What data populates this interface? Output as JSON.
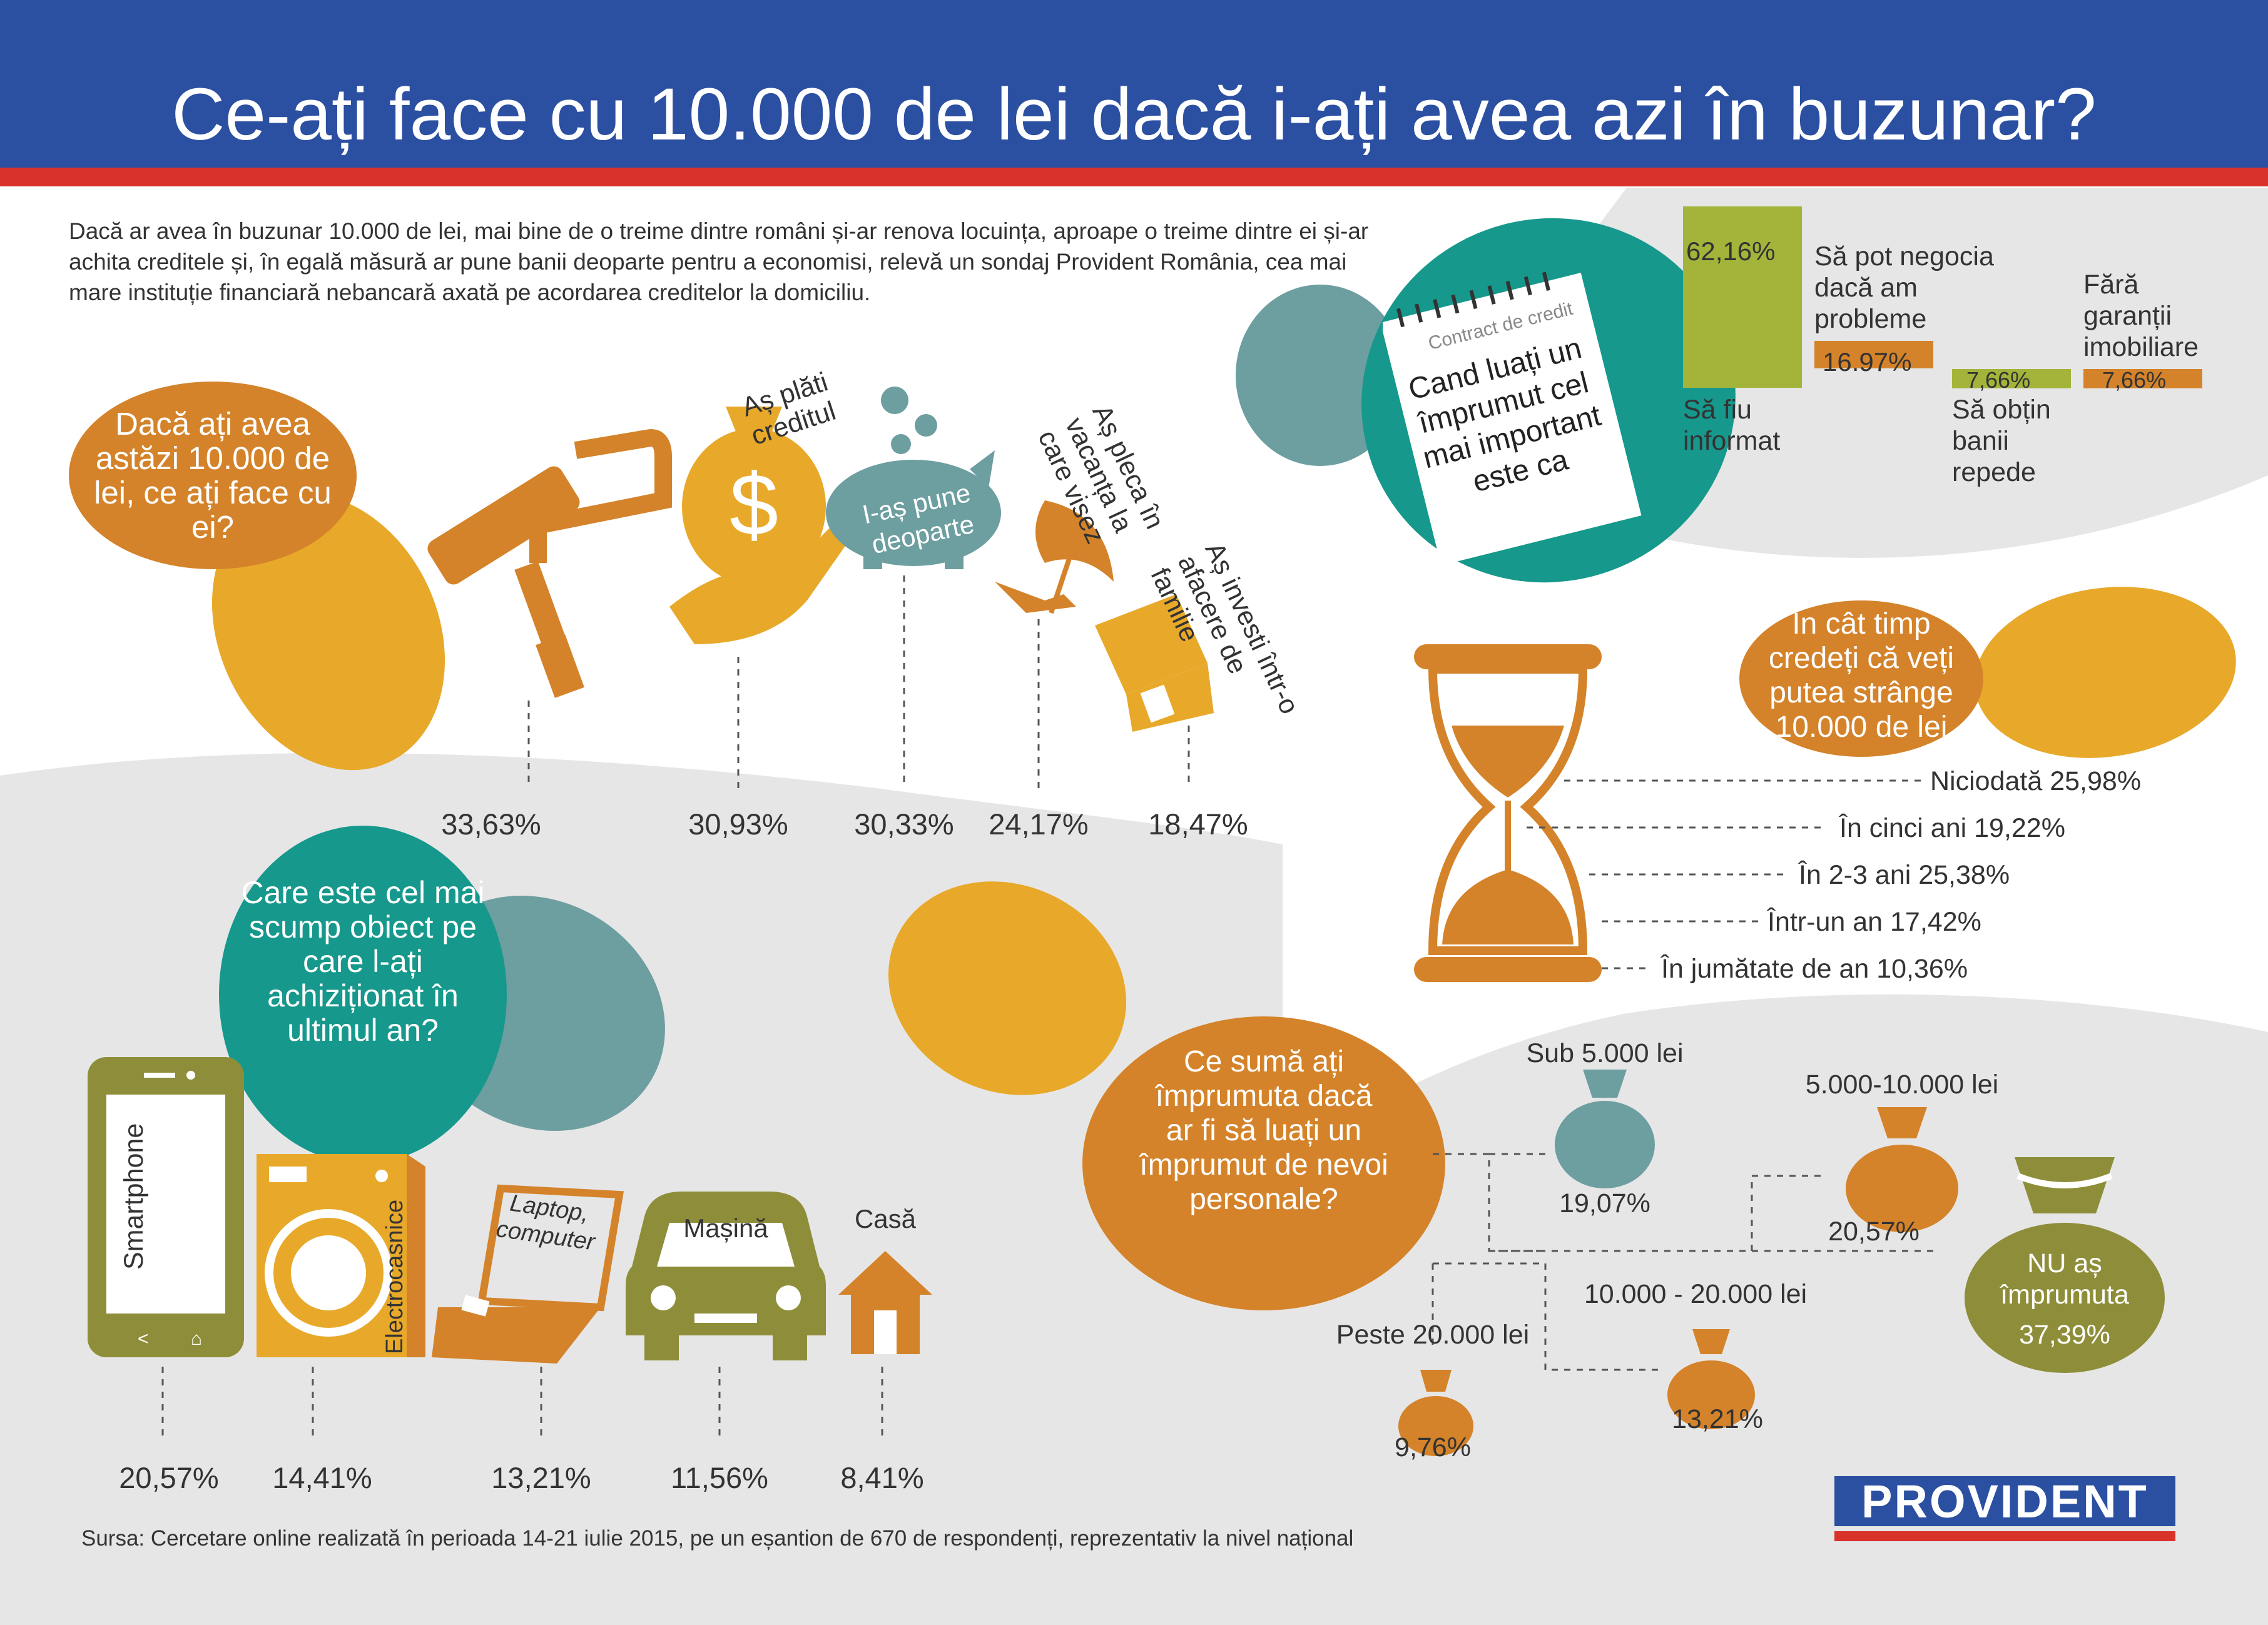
{
  "title": "Ce-ați face cu 10.000 de lei dacă i-ați avea azi în buzunar?",
  "intro": "Dacă ar avea în buzunar 10.000 de lei, mai bine de o treime dintre români și-ar renova locuința, aproape o treime dintre ei și-ar achita creditele și, în egală măsură ar pune banii deoparte pentru a economisi, relevă un sondaj Provident România, cea mai mare instituție financiară nebancară axată pe acordarea creditelor la domiciliu.",
  "colors": {
    "blue": "#2b4fa1",
    "red": "#d9322b",
    "orange": "#d4832a",
    "yellow": "#e8a92a",
    "teal": "#16988c",
    "greyteal": "#6d9ea0",
    "olive": "#8e8e3a",
    "lime": "#a4b43a"
  },
  "q1": {
    "question": "Dacă ați avea astăzi 10.000 de lei, ce ați face cu ei?",
    "items": [
      {
        "label": "Aș repara casa",
        "value": "33,63%",
        "icon": "paint-roller-icon"
      },
      {
        "label": "Aș plăti creditul",
        "value": "30,93%",
        "icon": "money-bag-hand-icon"
      },
      {
        "label": "I-aș pune deoparte",
        "value": "30,33%",
        "icon": "piggy-bank-icon"
      },
      {
        "label": "Aș pleca în vacanța la care visez",
        "value": "24,17%",
        "icon": "beach-umbrella-icon"
      },
      {
        "label": "Aș investi într-o afacere de familie",
        "value": "18,47%",
        "icon": "shop-icon"
      }
    ]
  },
  "q2": {
    "contract_header": "Contract de credit",
    "question": "Cand luați un împrumut cel mai important este ca",
    "chart_data": {
      "type": "bar",
      "categories": [
        "Să fiu informat",
        "Să pot negocia dacă am probleme",
        "Să obțin banii repede",
        "Fără garanții imobiliare"
      ],
      "values": [
        62.16,
        16.97,
        7.66,
        7.66
      ],
      "value_labels": [
        "62,16%",
        "16.97%",
        "7,66%",
        "7,66%"
      ]
    }
  },
  "q3": {
    "question": "În cât timp credeți că veți putea strânge 10.000 de lei",
    "items": [
      {
        "label": "Niciodată 25,98%"
      },
      {
        "label": "În cinci ani 19,22%"
      },
      {
        "label": "În 2-3 ani 25,38%"
      },
      {
        "label": "Într-un an 17,42%"
      },
      {
        "label": "În jumătate de an 10,36%"
      }
    ]
  },
  "q4": {
    "question": "Care este cel mai scump obiect pe care l-ați achiziționat în ultimul an?",
    "items": [
      {
        "label": "Smartphone",
        "value": "20,57%"
      },
      {
        "label": "Electrocasnice",
        "value": "14,41%"
      },
      {
        "label": "Laptop, computer",
        "value": "13,21%"
      },
      {
        "label": "Mașină",
        "value": "11,56%"
      },
      {
        "label": "Casă",
        "value": "8,41%"
      }
    ]
  },
  "q5": {
    "question": "Ce sumă ați împrumuta dacă ar fi să luați un împrumut de nevoi personale?",
    "items": [
      {
        "label": "Sub 5.000 lei",
        "value": "19,07%"
      },
      {
        "label": "5.000-10.000 lei",
        "value": "20,57%"
      },
      {
        "label": "Peste 20.000 lei",
        "value": "9,76%"
      },
      {
        "label": "10.000 - 20.000 lei",
        "value": "13,21%"
      },
      {
        "label": "NU aș împrumuta",
        "value": "37,39%"
      }
    ]
  },
  "source": "Sursa: Cercetare online realizată în perioada 14-21 iulie 2015, pe un eșantion de 670 de respondenți, reprezentativ la nivel național",
  "logo": "PROVIDENT"
}
